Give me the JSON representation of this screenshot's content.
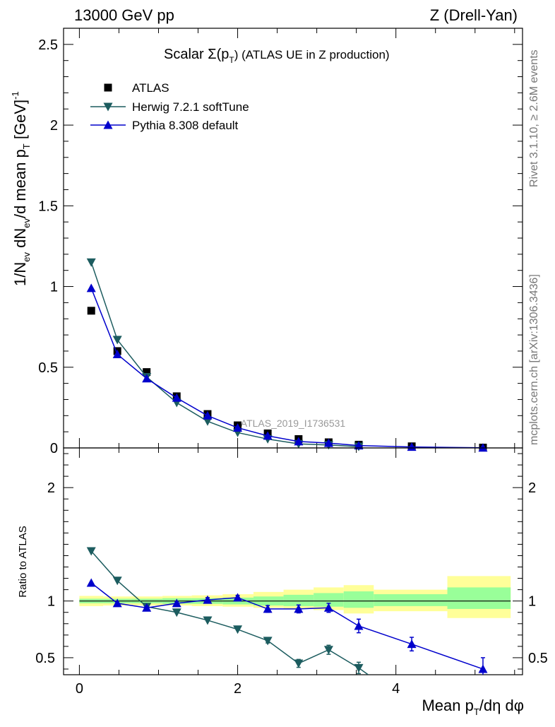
{
  "header": {
    "left": "13000 GeV pp",
    "right": "Z (Drell-Yan)"
  },
  "plot_title": {
    "main": "Scalar Σ(p",
    "sub": "T",
    "tail": ") (ATLAS UE in Z production)"
  },
  "side_labels": {
    "rivet": "Rivet 3.1.10, ≥ 2.6M events",
    "mcplots": "mcplots.cern.ch [arXiv:1306.3436]"
  },
  "watermark": "ATLAS_2019_I1736531",
  "chart_data": [
    {
      "type": "scatter",
      "panel": "main",
      "ylabel": "1/N_ev dN_ev/d mean p_T [GeV]^-1",
      "ylim": [
        0,
        2.6
      ],
      "xlim": [
        -0.2,
        5.6
      ],
      "yticks": [
        "0",
        "0.5",
        "1",
        "1.5",
        "2",
        "2.5"
      ],
      "series": [
        {
          "name": "ATLAS",
          "color": "#000000",
          "marker": "square",
          "x": [
            0.15,
            0.48,
            0.85,
            1.23,
            1.62,
            2.0,
            2.38,
            2.77,
            3.15,
            3.53,
            4.2,
            5.1
          ],
          "y": [
            0.85,
            0.6,
            0.47,
            0.32,
            0.21,
            0.14,
            0.09,
            0.055,
            0.035,
            0.02,
            0.01,
            0.002
          ]
        },
        {
          "name": "Herwig 7.2.1 softTune",
          "color": "#1c5c5f",
          "marker": "triangle-down",
          "x": [
            0.15,
            0.48,
            0.85,
            1.23,
            1.62,
            2.0,
            2.38,
            2.77,
            3.15,
            3.53
          ],
          "y": [
            1.15,
            0.67,
            0.44,
            0.28,
            0.165,
            0.095,
            0.055,
            0.025,
            0.018,
            0.008
          ]
        },
        {
          "name": "Pythia 8.308 default",
          "color": "#0000cc",
          "marker": "triangle-up",
          "x": [
            0.15,
            0.48,
            0.85,
            1.23,
            1.62,
            2.0,
            2.38,
            2.77,
            3.15,
            3.53,
            4.2,
            5.1
          ],
          "y": [
            0.99,
            0.58,
            0.43,
            0.31,
            0.2,
            0.125,
            0.075,
            0.04,
            0.03,
            0.015,
            0.006,
            0.001
          ]
        }
      ]
    },
    {
      "type": "scatter",
      "panel": "ratio",
      "xlabel": "Mean p_T/dη dφ",
      "ylabel": "Ratio to ATLAS",
      "ylim": [
        0.35,
        2.35
      ],
      "xlim": [
        -0.2,
        5.6
      ],
      "yticks": [
        "0.5",
        "1",
        "2"
      ],
      "xticks": [
        "0",
        "2",
        "4"
      ],
      "bands": [
        {
          "x0": 0.0,
          "x1": 0.3,
          "y0": 0.955,
          "y1": 1.045,
          "green_y0": 0.98,
          "green_y1": 1.02
        },
        {
          "x0": 0.3,
          "x1": 0.65,
          "y0": 0.96,
          "y1": 1.04,
          "green_y0": 0.98,
          "green_y1": 1.02
        },
        {
          "x0": 0.65,
          "x1": 1.05,
          "y0": 0.96,
          "y1": 1.04,
          "green_y0": 0.98,
          "green_y1": 1.02
        },
        {
          "x0": 1.05,
          "x1": 1.42,
          "y0": 0.96,
          "y1": 1.045,
          "green_y0": 0.975,
          "green_y1": 1.025
        },
        {
          "x0": 1.42,
          "x1": 1.81,
          "y0": 0.955,
          "y1": 1.05,
          "green_y0": 0.975,
          "green_y1": 1.025
        },
        {
          "x0": 1.81,
          "x1": 2.2,
          "y0": 0.95,
          "y1": 1.06,
          "green_y0": 0.97,
          "green_y1": 1.03
        },
        {
          "x0": 2.2,
          "x1": 2.58,
          "y0": 0.94,
          "y1": 1.08,
          "green_y0": 0.96,
          "green_y1": 1.04
        },
        {
          "x0": 2.58,
          "x1": 2.96,
          "y0": 0.93,
          "y1": 1.1,
          "green_y0": 0.955,
          "green_y1": 1.055
        },
        {
          "x0": 2.96,
          "x1": 3.34,
          "y0": 0.92,
          "y1": 1.12,
          "green_y0": 0.95,
          "green_y1": 1.07
        },
        {
          "x0": 3.34,
          "x1": 3.72,
          "y0": 0.89,
          "y1": 1.14,
          "green_y0": 0.94,
          "green_y1": 1.085
        },
        {
          "x0": 3.72,
          "x1": 4.65,
          "y0": 0.91,
          "y1": 1.1,
          "green_y0": 0.955,
          "green_y1": 1.06
        },
        {
          "x0": 4.65,
          "x1": 5.45,
          "y0": 0.85,
          "y1": 1.22,
          "green_y0": 0.93,
          "green_y1": 1.12
        }
      ],
      "series": [
        {
          "name": "Herwig 7.2.1 softTune",
          "color": "#1c5c5f",
          "marker": "triangle-down",
          "x": [
            0.15,
            0.48,
            0.85,
            1.23,
            1.62,
            2.0,
            2.38,
            2.77,
            3.15,
            3.53,
            3.65
          ],
          "y": [
            1.44,
            1.18,
            0.95,
            0.9,
            0.83,
            0.75,
            0.65,
            0.45,
            0.57,
            0.41,
            0.35
          ],
          "err": [
            0,
            0,
            0,
            0,
            0,
            0,
            0.02,
            0.035,
            0.04,
            0.05,
            0
          ],
          "marker_mask": [
            1,
            1,
            1,
            1,
            1,
            1,
            1,
            1,
            1,
            1,
            0
          ]
        },
        {
          "name": "Pythia 8.308 default",
          "color": "#0000cc",
          "marker": "triangle-up",
          "x": [
            0.15,
            0.48,
            0.85,
            1.23,
            1.62,
            2.0,
            2.38,
            2.77,
            3.15,
            3.53,
            4.2,
            5.1
          ],
          "y": [
            1.16,
            0.98,
            0.94,
            0.98,
            1.01,
            1.03,
            0.93,
            0.93,
            0.94,
            0.78,
            0.62,
            0.4
          ],
          "err": [
            0,
            0,
            0.015,
            0.015,
            0.02,
            0.02,
            0.03,
            0.035,
            0.04,
            0.06,
            0.06,
            0.1
          ]
        }
      ]
    }
  ]
}
